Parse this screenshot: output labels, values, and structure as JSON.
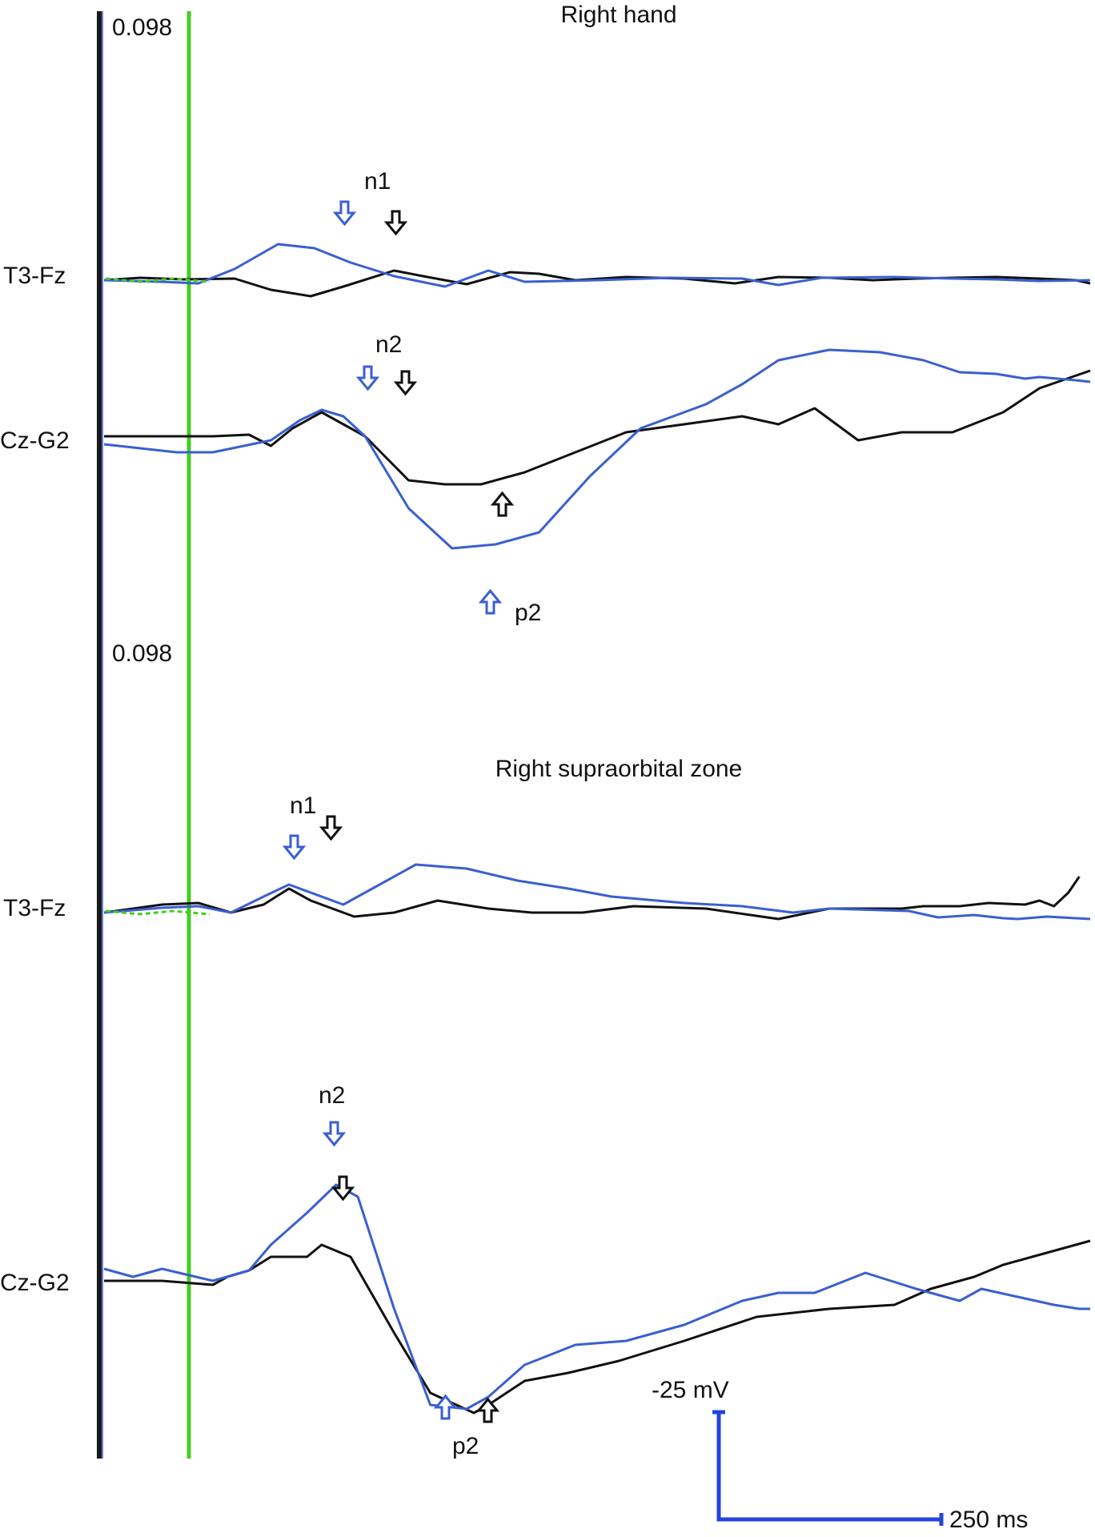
{
  "panels": [
    {
      "title": "Right hand",
      "gain": "0.098"
    },
    {
      "title": "Right supraorbital zone",
      "gain": "0.098"
    }
  ],
  "scale_bar": {
    "amplitude": "-25 mV",
    "time": "250 ms"
  },
  "colors": {
    "trace_a": "#111111",
    "trace_b": "#3a5fd0",
    "marker": "#44cc22",
    "scale": "#2244dd"
  },
  "chart_data": [
    {
      "type": "line",
      "title": "Right hand",
      "channels": [
        {
          "label": "T3-Fz",
          "series": [
            {
              "color": "#111111",
              "points": [
                [
                  0,
                  0
                ],
                [
                  50,
                  -3
                ],
                [
                  110,
                  -1
                ],
                [
                  180,
                  -2
                ],
                [
                  230,
                  12
                ],
                [
                  285,
                  20
                ],
                [
                  330,
                  8
                ],
                [
                  400,
                  -12
                ],
                [
                  440,
                  -5
                ],
                [
                  500,
                  5
                ],
                [
                  560,
                  -10
                ],
                [
                  600,
                  -8
                ],
                [
                  650,
                  0
                ],
                [
                  720,
                  -4
                ],
                [
                  800,
                  -2
                ],
                [
                  870,
                  4
                ],
                [
                  930,
                  -4
                ],
                [
                  1000,
                  -3
                ],
                [
                  1060,
                  0
                ],
                [
                  1120,
                  -2
                ],
                [
                  1170,
                  -3
                ],
                [
                  1230,
                  -4
                ],
                [
                  1290,
                  -2
                ],
                [
                  1340,
                  0
                ],
                [
                  1360,
                  4
                ]
              ]
            },
            {
              "color": "#3a5fd0",
              "points": [
                [
                  0,
                  0
                ],
                [
                  80,
                  2
                ],
                [
                  130,
                  4
                ],
                [
                  180,
                  -14
                ],
                [
                  240,
                  -45
                ],
                [
                  290,
                  -40
                ],
                [
                  340,
                  -22
                ],
                [
                  400,
                  -5
                ],
                [
                  470,
                  8
                ],
                [
                  530,
                  -12
                ],
                [
                  580,
                  2
                ],
                [
                  680,
                  0
                ],
                [
                  780,
                  -3
                ],
                [
                  880,
                  -2
                ],
                [
                  930,
                  6
                ],
                [
                  990,
                  -3
                ],
                [
                  1090,
                  -4
                ],
                [
                  1170,
                  -2
                ],
                [
                  1230,
                  -1
                ],
                [
                  1290,
                  1
                ],
                [
                  1360,
                  0
                ]
              ]
            }
          ]
        },
        {
          "label": "Cz-G2",
          "series": [
            {
              "color": "#111111",
              "points": [
                [
                  0,
                  0
                ],
                [
                  80,
                  0
                ],
                [
                  150,
                  0
                ],
                [
                  200,
                  -2
                ],
                [
                  230,
                  12
                ],
                [
                  260,
                  -10
                ],
                [
                  300,
                  -30
                ],
                [
                  360,
                  0
                ],
                [
                  420,
                  55
                ],
                [
                  470,
                  60
                ],
                [
                  520,
                  60
                ],
                [
                  580,
                  45
                ],
                [
                  650,
                  20
                ],
                [
                  720,
                  -5
                ],
                [
                  800,
                  -15
                ],
                [
                  880,
                  -25
                ],
                [
                  930,
                  -15
                ],
                [
                  980,
                  -35
                ],
                [
                  1040,
                  5
                ],
                [
                  1100,
                  -5
                ],
                [
                  1170,
                  -5
                ],
                [
                  1240,
                  -30
                ],
                [
                  1290,
                  -60
                ],
                [
                  1360,
                  -82
                ]
              ]
            },
            {
              "color": "#3a5fd0",
              "points": [
                [
                  0,
                  10
                ],
                [
                  100,
                  20
                ],
                [
                  150,
                  20
                ],
                [
                  230,
                  5
                ],
                [
                  270,
                  -20
                ],
                [
                  300,
                  -33
                ],
                [
                  330,
                  -25
                ],
                [
                  360,
                  0
                ],
                [
                  420,
                  90
                ],
                [
                  480,
                  140
                ],
                [
                  540,
                  135
                ],
                [
                  600,
                  120
                ],
                [
                  670,
                  50
                ],
                [
                  740,
                  -10
                ],
                [
                  830,
                  -40
                ],
                [
                  880,
                  -65
                ],
                [
                  930,
                  -95
                ],
                [
                  1000,
                  -108
                ],
                [
                  1070,
                  -105
                ],
                [
                  1130,
                  -95
                ],
                [
                  1180,
                  -80
                ],
                [
                  1230,
                  -78
                ],
                [
                  1270,
                  -72
                ],
                [
                  1290,
                  -74
                ],
                [
                  1340,
                  -70
                ],
                [
                  1360,
                  -68
                ]
              ]
            }
          ]
        }
      ],
      "annotations": [
        "n1",
        "n2",
        "p2"
      ]
    },
    {
      "type": "line",
      "title": "Right supraorbital zone",
      "channels": [
        {
          "label": "T3-Fz",
          "series": [
            {
              "color": "#111111",
              "points": [
                [
                  0,
                  0
                ],
                [
                  80,
                  -10
                ],
                [
                  130,
                  -12
                ],
                [
                  175,
                  0
                ],
                [
                  220,
                  -10
                ],
                [
                  255,
                  -30
                ],
                [
                  285,
                  -15
                ],
                [
                  345,
                  5
                ],
                [
                  400,
                  0
                ],
                [
                  460,
                  -15
                ],
                [
                  530,
                  -5
                ],
                [
                  590,
                  0
                ],
                [
                  660,
                  0
                ],
                [
                  730,
                  -8
                ],
                [
                  830,
                  -5
                ],
                [
                  930,
                  8
                ],
                [
                  1000,
                  -5
                ],
                [
                  1100,
                  -5
                ],
                [
                  1130,
                  -8
                ],
                [
                  1180,
                  -8
                ],
                [
                  1220,
                  -12
                ],
                [
                  1270,
                  -10
                ],
                [
                  1290,
                  -15
                ],
                [
                  1310,
                  -8
                ],
                [
                  1330,
                  -25
                ],
                [
                  1345,
                  -45
                ]
              ]
            },
            {
              "color": "#3a5fd0",
              "points": [
                [
                  0,
                  0
                ],
                [
                  80,
                  -6
                ],
                [
                  130,
                  -8
                ],
                [
                  175,
                  0
                ],
                [
                  220,
                  -20
                ],
                [
                  255,
                  -35
                ],
                [
                  330,
                  -10
                ],
                [
                  370,
                  -30
                ],
                [
                  430,
                  -60
                ],
                [
                  500,
                  -55
                ],
                [
                  570,
                  -40
                ],
                [
                  640,
                  -30
                ],
                [
                  700,
                  -20
                ],
                [
                  800,
                  -12
                ],
                [
                  880,
                  -8
                ],
                [
                  950,
                  0
                ],
                [
                  1000,
                  -5
                ],
                [
                  1110,
                  -2
                ],
                [
                  1150,
                  6
                ],
                [
                  1200,
                  3
                ],
                [
                  1240,
                  7
                ],
                [
                  1260,
                  8
                ],
                [
                  1300,
                  5
                ],
                [
                  1360,
                  8
                ]
              ]
            }
          ]
        },
        {
          "label": "Cz-G2",
          "series": [
            {
              "color": "#111111",
              "points": [
                [
                  0,
                  5
                ],
                [
                  80,
                  5
                ],
                [
                  150,
                  10
                ],
                [
                  170,
                  0
                ],
                [
                  200,
                  -8
                ],
                [
                  230,
                  -25
                ],
                [
                  280,
                  -25
                ],
                [
                  300,
                  -40
                ],
                [
                  340,
                  -25
                ],
                [
                  400,
                  70
                ],
                [
                  450,
                  145
                ],
                [
                  510,
                  170
                ],
                [
                  530,
                  160
                ],
                [
                  580,
                  130
                ],
                [
                  640,
                  120
                ],
                [
                  710,
                  105
                ],
                [
                  800,
                  80
                ],
                [
                  900,
                  50
                ],
                [
                  1000,
                  40
                ],
                [
                  1090,
                  35
                ],
                [
                  1140,
                  15
                ],
                [
                  1200,
                  0
                ],
                [
                  1240,
                  -15
                ],
                [
                  1280,
                  -25
                ],
                [
                  1340,
                  -40
                ],
                [
                  1360,
                  -45
                ]
              ]
            },
            {
              "color": "#3a5fd0",
              "points": [
                [
                  0,
                  -10
                ],
                [
                  40,
                  0
                ],
                [
                  80,
                  -10
                ],
                [
                  150,
                  5
                ],
                [
                  200,
                  -8
                ],
                [
                  230,
                  -40
                ],
                [
                  280,
                  -80
                ],
                [
                  320,
                  -115
                ],
                [
                  350,
                  -100
                ],
                [
                  400,
                  40
                ],
                [
                  450,
                  160
                ],
                [
                  500,
                  165
                ],
                [
                  530,
                  150
                ],
                [
                  580,
                  110
                ],
                [
                  650,
                  85
                ],
                [
                  720,
                  80
                ],
                [
                  800,
                  60
                ],
                [
                  880,
                  30
                ],
                [
                  930,
                  20
                ],
                [
                  980,
                  20
                ],
                [
                  1050,
                  -5
                ],
                [
                  1120,
                  15
                ],
                [
                  1180,
                  30
                ],
                [
                  1210,
                  15
                ],
                [
                  1260,
                  25
                ],
                [
                  1310,
                  35
                ],
                [
                  1345,
                  40
                ],
                [
                  1360,
                  40
                ]
              ]
            }
          ]
        }
      ],
      "annotations": [
        "n1",
        "n2",
        "p2"
      ]
    }
  ]
}
